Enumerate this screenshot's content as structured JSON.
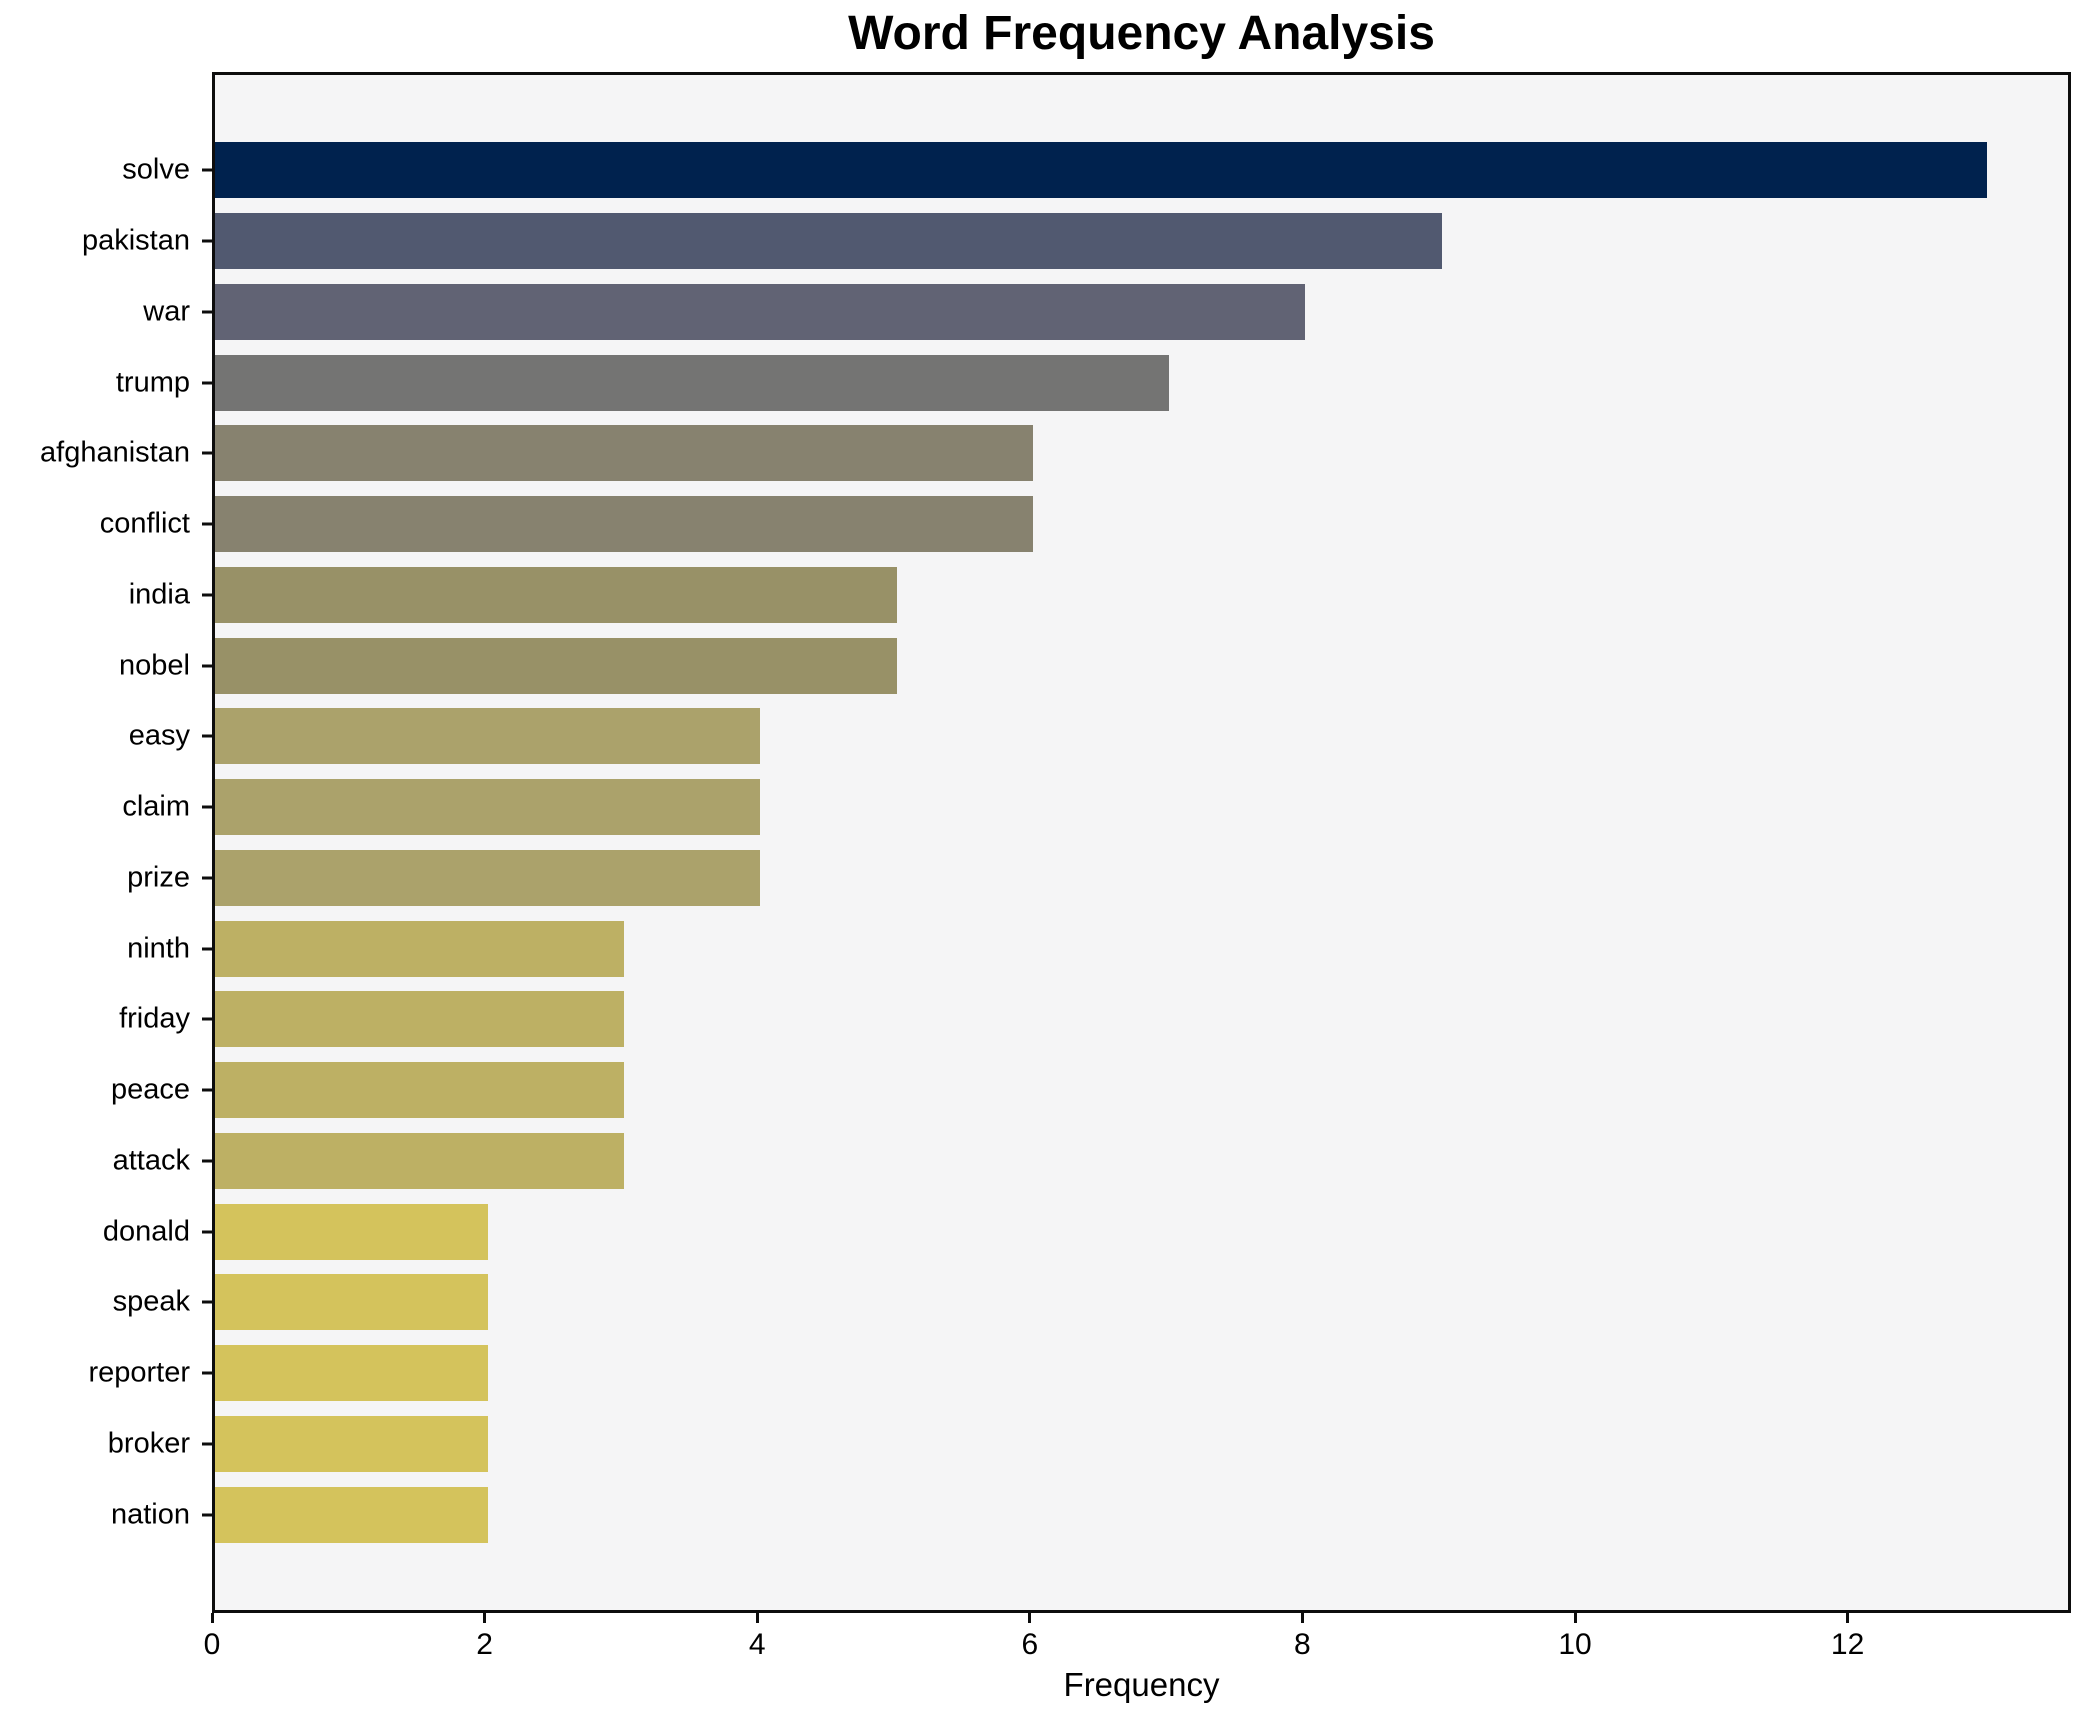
{
  "chart_data": {
    "type": "bar",
    "orientation": "horizontal",
    "title": "Word Frequency Analysis",
    "xlabel": "Frequency",
    "ylabel": "",
    "categories": [
      "solve",
      "pakistan",
      "war",
      "trump",
      "afghanistan",
      "conflict",
      "india",
      "nobel",
      "easy",
      "claim",
      "prize",
      "ninth",
      "friday",
      "peace",
      "attack",
      "donald",
      "speak",
      "reporter",
      "broker",
      "nation"
    ],
    "values": [
      13,
      9,
      8,
      7,
      6,
      6,
      5,
      5,
      4,
      4,
      4,
      3,
      3,
      3,
      3,
      2,
      2,
      2,
      2,
      2
    ],
    "bar_colors": [
      "#00224E",
      "#515970",
      "#616374",
      "#747473",
      "#87826F",
      "#87826F",
      "#989167",
      "#989167",
      "#ABA26B",
      "#ABA26B",
      "#ABA26B",
      "#BDB064",
      "#BDB064",
      "#BDB064",
      "#BDB064",
      "#D4C35C",
      "#D4C35C",
      "#D4C35C",
      "#D4C35C",
      "#D4C35C"
    ],
    "x_ticks": [
      0,
      2,
      4,
      6,
      8,
      10,
      12
    ],
    "xlim": [
      0,
      13.6
    ],
    "grid": false,
    "legend": "none",
    "plot_background": "#F5F5F6",
    "figure_background": "#FFFFFF",
    "spine_color": "#0D0D0D",
    "text_color": "#000000"
  }
}
